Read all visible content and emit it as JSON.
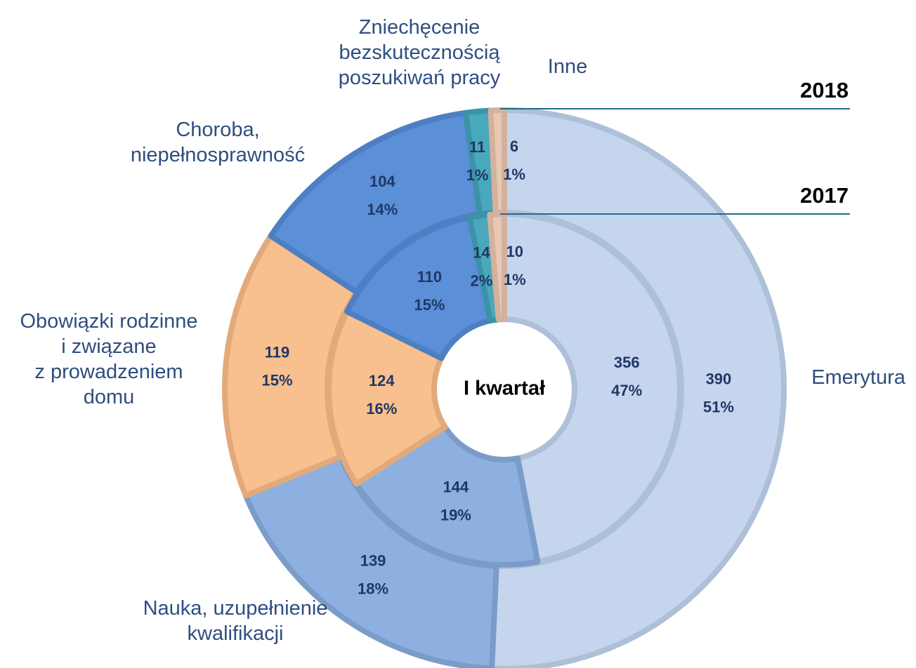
{
  "chart_data": {
    "type": "donut",
    "center_label": "I kwartał",
    "categories": [
      "Emerytura",
      "Nauka, uzupełnienie\nkwalifikacji",
      "Obowiązki rodzinne\ni związane\nz prowadzeniem\ndomu",
      "Choroba,\nniepełnosprawność",
      "Zniechęcenie\nbezskutecznością\nposzukiwań pracy",
      "Inne"
    ],
    "colors": [
      "#c5d5ee",
      "#8db0e0",
      "#f8c08e",
      "#5b8fd8",
      "#4aa8bd",
      "#e8c8b5"
    ],
    "series": [
      {
        "name": "2018",
        "values": [
          390,
          139,
          119,
          104,
          11,
          6
        ],
        "percent_labels": [
          "51%",
          "18%",
          "15%",
          "14%",
          "1%",
          "1%"
        ]
      },
      {
        "name": "2017",
        "values": [
          356,
          144,
          124,
          110,
          14,
          10
        ],
        "percent_labels": [
          "47%",
          "19%",
          "16%",
          "15%",
          "2%",
          "1%"
        ]
      }
    ]
  }
}
